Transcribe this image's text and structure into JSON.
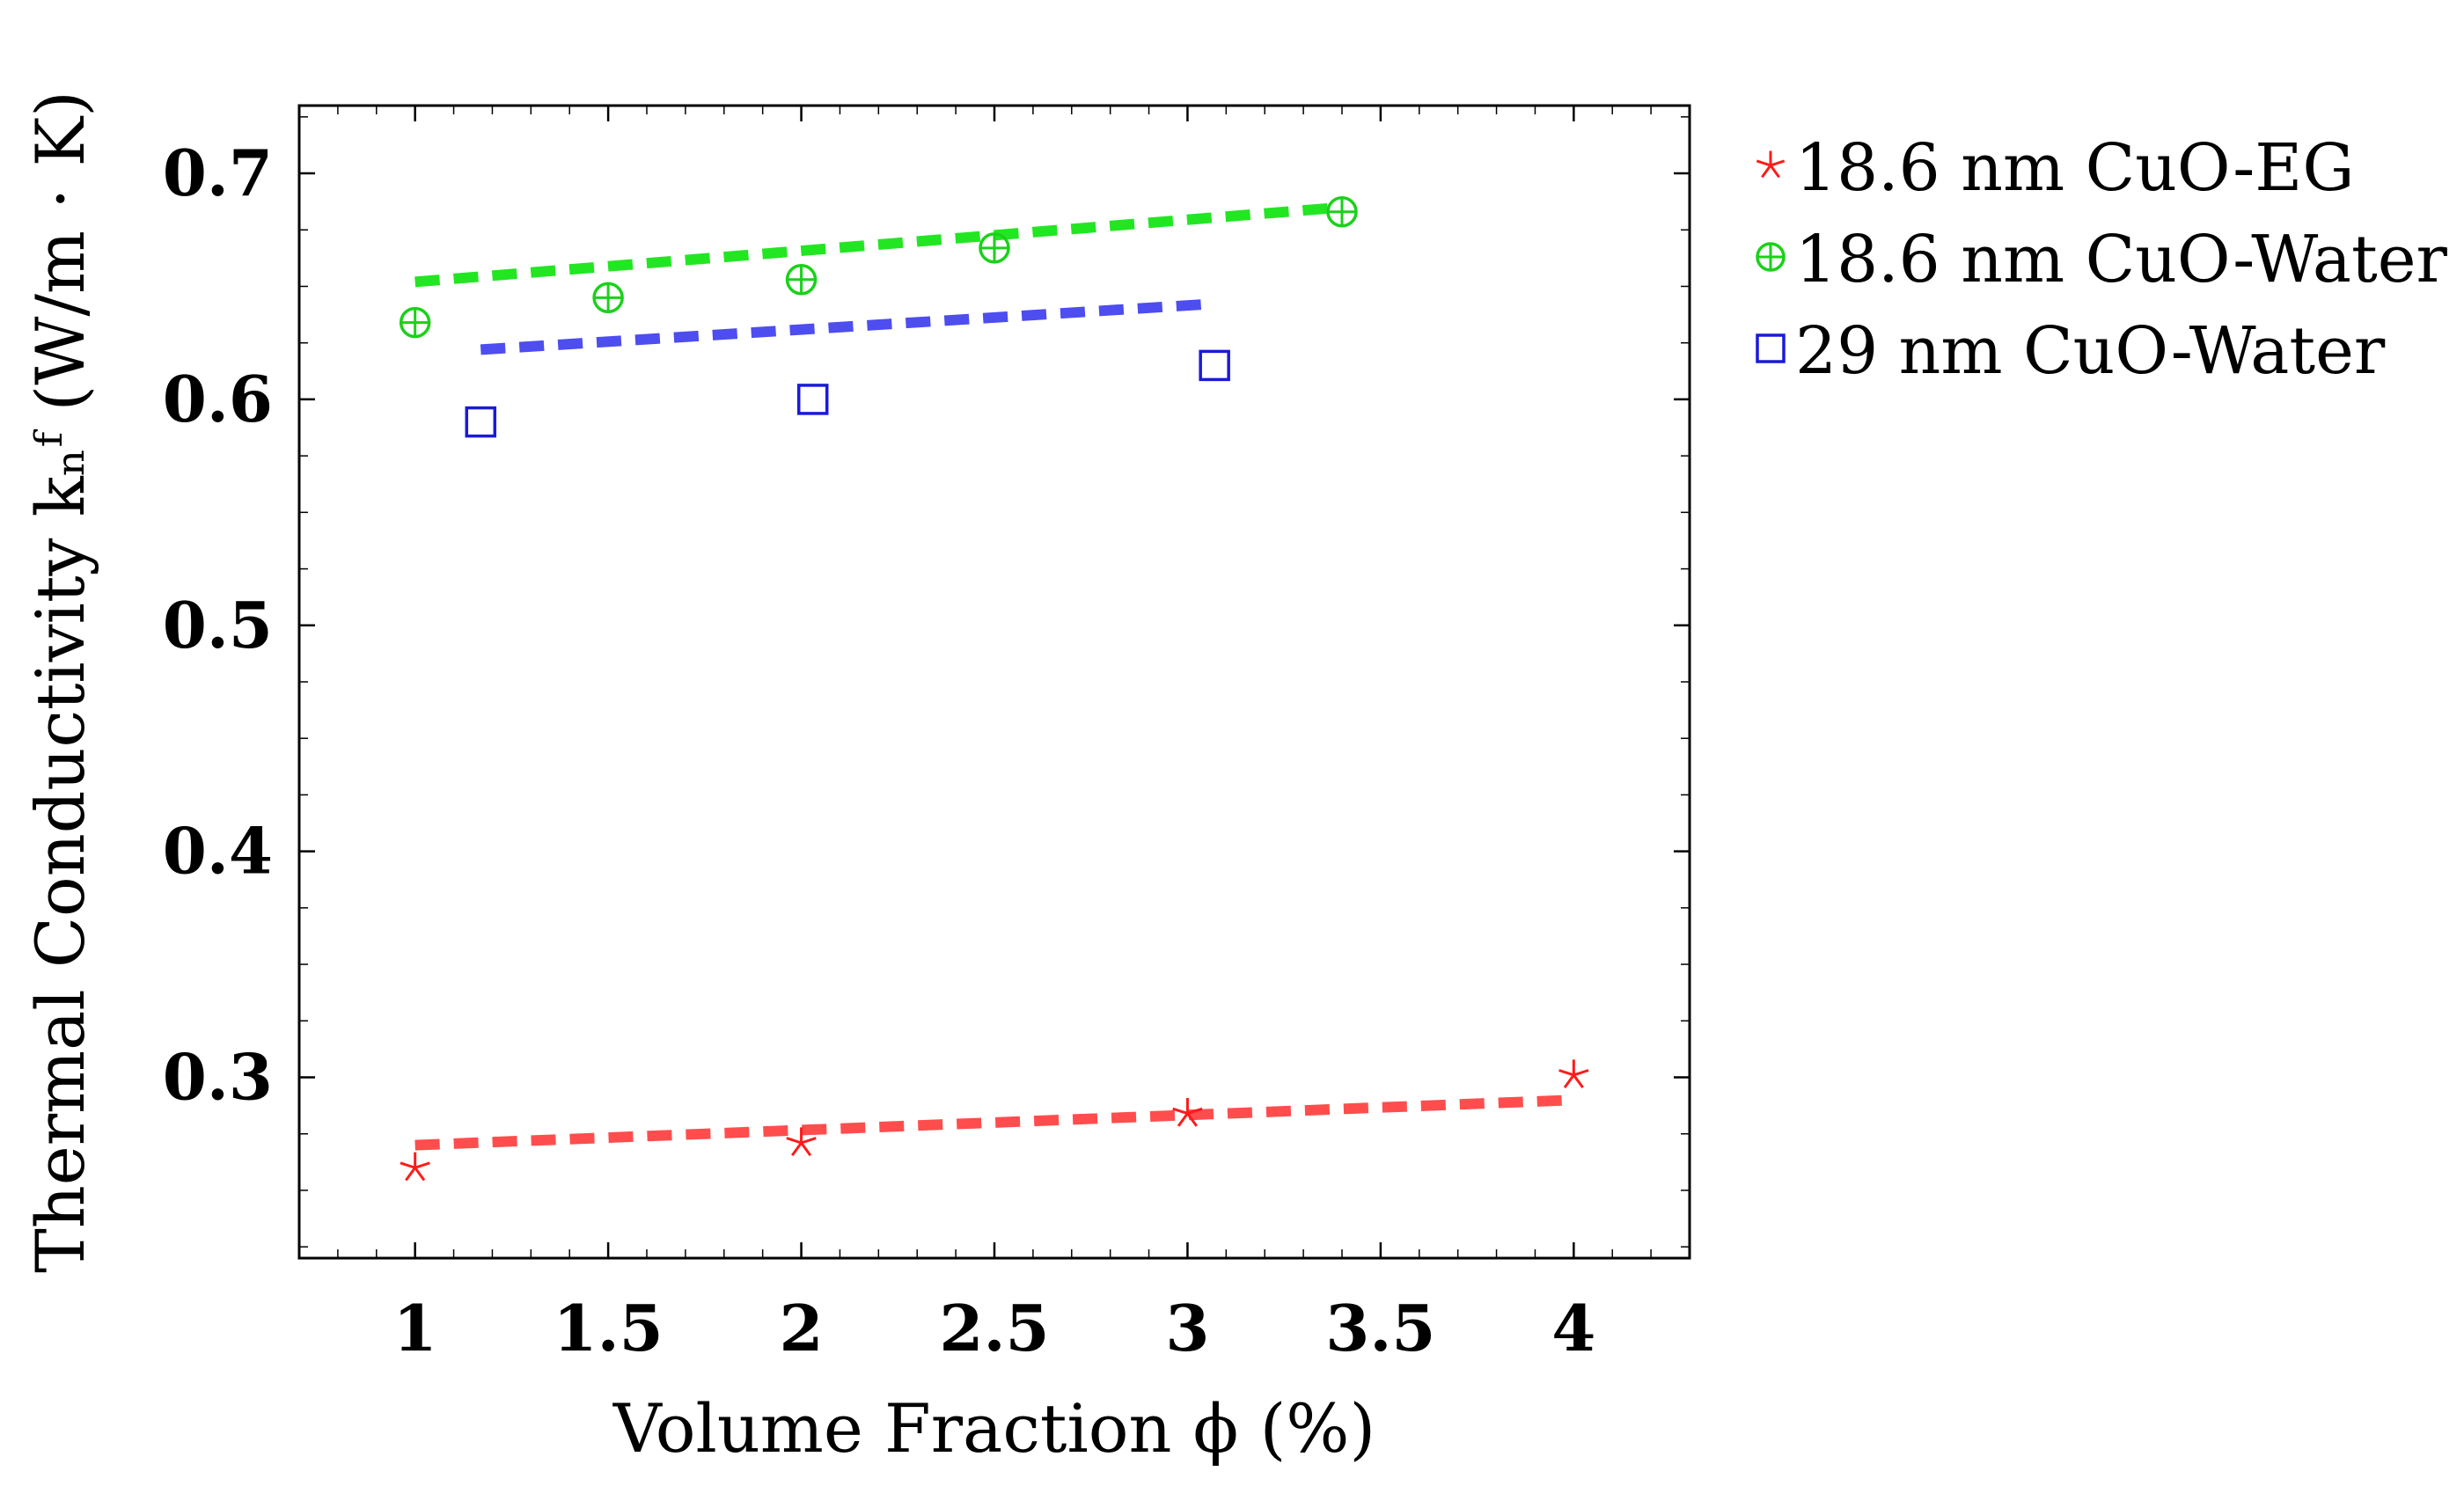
{
  "chart_data": {
    "type": "scatter",
    "xlabel": "Volume Fraction ϕ (%)",
    "ylabel": "Thermal Conductivity kₙᶠ (W/m · K)",
    "xlim": [
      0.7,
      4.3
    ],
    "ylim": [
      0.22,
      0.73
    ],
    "x_ticks": [
      {
        "value": 1,
        "label": "1"
      },
      {
        "value": 1.5,
        "label": "1.5"
      },
      {
        "value": 2,
        "label": "2"
      },
      {
        "value": 2.5,
        "label": "2.5"
      },
      {
        "value": 3,
        "label": "3"
      },
      {
        "value": 3.5,
        "label": "3.5"
      },
      {
        "value": 4,
        "label": "4"
      }
    ],
    "y_ticks": [
      {
        "value": 0.3,
        "label": "0.3"
      },
      {
        "value": 0.4,
        "label": "0.4"
      },
      {
        "value": 0.5,
        "label": "0.5"
      },
      {
        "value": 0.6,
        "label": "0.6"
      },
      {
        "value": 0.7,
        "label": "0.7"
      }
    ],
    "minor_tick_step": 0.1,
    "grid": false,
    "legend_position": "outside-right-top",
    "series": [
      {
        "name": "18.6 nm CuO-EG",
        "marker": "asterisk",
        "color": "#ff1a1a",
        "points": [
          {
            "x": 1.0,
            "y": 0.26
          },
          {
            "x": 2.0,
            "y": 0.271
          },
          {
            "x": 3.0,
            "y": 0.284
          },
          {
            "x": 4.0,
            "y": 0.301
          }
        ],
        "fit": {
          "color": "#ff4d4d",
          "x": [
            1.0,
            4.0
          ],
          "y": [
            0.27,
            0.29
          ]
        }
      },
      {
        "name": "18.6 nm CuO-Water",
        "marker": "circle-plus",
        "color": "#1ad11a",
        "points": [
          {
            "x": 1.0,
            "y": 0.634
          },
          {
            "x": 1.5,
            "y": 0.645
          },
          {
            "x": 2.0,
            "y": 0.653
          },
          {
            "x": 2.5,
            "y": 0.667
          },
          {
            "x": 3.4,
            "y": 0.683
          }
        ],
        "fit": {
          "color": "#22e622",
          "x": [
            1.0,
            3.4
          ],
          "y": [
            0.652,
            0.685
          ]
        }
      },
      {
        "name": "29 nm CuO-Water",
        "marker": "square",
        "color": "#1a1ad9",
        "points": [
          {
            "x": 1.17,
            "y": 0.59
          },
          {
            "x": 2.03,
            "y": 0.6
          },
          {
            "x": 3.07,
            "y": 0.615
          }
        ],
        "fit": {
          "color": "#4d4df0",
          "x": [
            1.17,
            3.04
          ],
          "y": [
            0.622,
            0.642
          ]
        }
      }
    ]
  }
}
